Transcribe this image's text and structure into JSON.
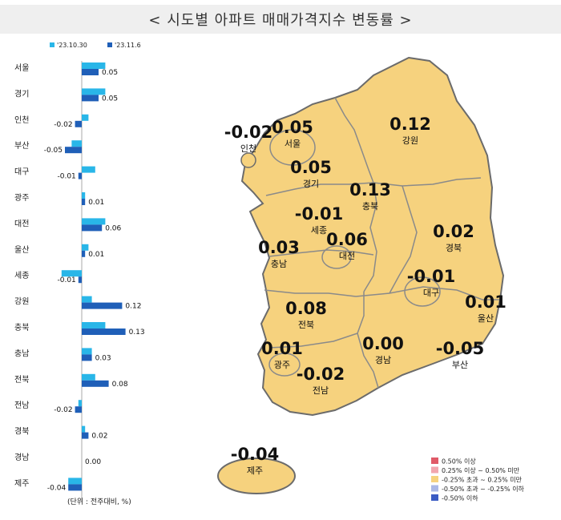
{
  "chart_data": [
    {
      "type": "bar",
      "title": "< 시도별 아파트 매매가격지수 변동률 >",
      "unit_note": "(단위 : 전주대비, %)",
      "categories": [
        "서울",
        "경기",
        "인천",
        "부산",
        "대구",
        "광주",
        "대전",
        "울산",
        "세종",
        "강원",
        "충북",
        "충남",
        "전북",
        "전남",
        "경북",
        "경남",
        "제주"
      ],
      "series": [
        {
          "name": "'23.10.30",
          "color": "#29b6e8",
          "values": [
            0.07,
            0.07,
            0.02,
            -0.03,
            0.04,
            0.01,
            0.07,
            0.02,
            -0.06,
            0.03,
            0.07,
            0.03,
            0.04,
            -0.01,
            0.01,
            0.0,
            -0.04
          ]
        },
        {
          "name": "'23.11.6",
          "color": "#1f5fb8",
          "values": [
            0.05,
            0.05,
            -0.02,
            -0.05,
            -0.01,
            0.01,
            0.06,
            0.01,
            -0.01,
            0.12,
            0.13,
            0.03,
            0.08,
            -0.02,
            0.02,
            0.0,
            -0.04
          ]
        }
      ],
      "value_labels": [
        "0.05",
        "0.05",
        "-0.02",
        "-0.05",
        "-0.01",
        "0.01",
        "0.06",
        "0.01",
        "-0.01",
        "0.12",
        "0.13",
        "0.03",
        "0.08",
        "-0.02",
        "0.02",
        "0.00",
        "-0.04"
      ],
      "legend_position": "top"
    },
    {
      "type": "map",
      "regions": [
        {
          "name": "서울",
          "value": "0.05"
        },
        {
          "name": "인천",
          "value": "-0.02"
        },
        {
          "name": "경기",
          "value": "0.05"
        },
        {
          "name": "강원",
          "value": "0.12"
        },
        {
          "name": "충북",
          "value": "0.13"
        },
        {
          "name": "세종",
          "value": "-0.01"
        },
        {
          "name": "충남",
          "value": "0.03"
        },
        {
          "name": "대전",
          "value": "0.06"
        },
        {
          "name": "경북",
          "value": "0.02"
        },
        {
          "name": "대구",
          "value": "-0.01"
        },
        {
          "name": "전북",
          "value": "0.08"
        },
        {
          "name": "울산",
          "value": "0.01"
        },
        {
          "name": "광주",
          "value": "0.01"
        },
        {
          "name": "경남",
          "value": "0.00"
        },
        {
          "name": "부산",
          "value": "-0.05"
        },
        {
          "name": "전남",
          "value": "-0.02"
        },
        {
          "name": "제주",
          "value": "-0.04"
        }
      ],
      "legend": [
        {
          "label": "0.50% 이상",
          "color": "#e05a68"
        },
        {
          "label": "0.25% 이상 ~ 0.50% 미만",
          "color": "#f2a6ae"
        },
        {
          "label": "-0.25% 초과 ~ 0.25% 미만",
          "color": "#f6d27e"
        },
        {
          "label": "-0.50% 초과 ~ -0.25% 이하",
          "color": "#aab8e6"
        },
        {
          "label": "-0.50% 이하",
          "color": "#3b5cc4"
        }
      ],
      "fill_color": "#f6d27e",
      "border_color": "#6b6b6b"
    }
  ]
}
